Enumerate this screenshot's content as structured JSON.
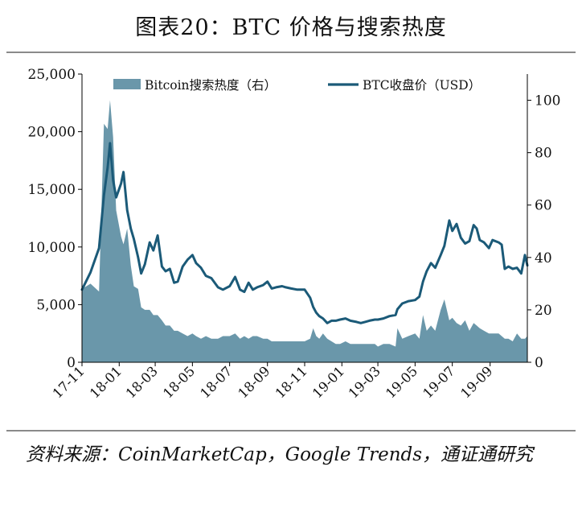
{
  "title": "图表20：BTC 价格与搜索热度",
  "source": "资料来源：CoinMarketCap，Google Trends，通证通研究",
  "colors": {
    "price": "#1b5a78",
    "search": "#6a97aa",
    "axis": "#000000"
  },
  "chart_data": {
    "type": "line",
    "legend_position": "top",
    "x_ticks": [
      "17-11",
      "18-01",
      "18-03",
      "18-05",
      "18-07",
      "18-09",
      "18-11",
      "19-01",
      "19-03",
      "19-05",
      "19-07",
      "19-09"
    ],
    "y_left": {
      "lim": [
        0,
        25000
      ],
      "ticks": [
        0,
        5000,
        10000,
        15000,
        20000,
        25000
      ],
      "tick_labels": [
        "0",
        "5,000",
        "10,000",
        "15,000",
        "20,000",
        "25,000"
      ]
    },
    "y_right": {
      "lim": [
        0,
        110
      ],
      "ticks": [
        0,
        20,
        40,
        60,
        80,
        100
      ],
      "tick_labels": [
        "0",
        "20",
        "40",
        "60",
        "80",
        "100"
      ]
    },
    "x": [
      "2017-11-01",
      "2017-11-15",
      "2017-11-29",
      "2017-12-07",
      "2017-12-13",
      "2017-12-17",
      "2017-12-22",
      "2017-12-27",
      "2018-01-04",
      "2018-01-08",
      "2018-01-14",
      "2018-01-20",
      "2018-01-25",
      "2018-02-01",
      "2018-02-06",
      "2018-02-12",
      "2018-02-20",
      "2018-02-26",
      "2018-03-05",
      "2018-03-12",
      "2018-03-18",
      "2018-03-25",
      "2018-04-01",
      "2018-04-07",
      "2018-04-15",
      "2018-04-23",
      "2018-05-01",
      "2018-05-07",
      "2018-05-15",
      "2018-05-23",
      "2018-06-01",
      "2018-06-12",
      "2018-06-20",
      "2018-07-01",
      "2018-07-10",
      "2018-07-18",
      "2018-07-25",
      "2018-08-01",
      "2018-08-08",
      "2018-08-15",
      "2018-08-25",
      "2018-09-01",
      "2018-09-08",
      "2018-09-15",
      "2018-09-25",
      "2018-10-01",
      "2018-10-10",
      "2018-10-20",
      "2018-11-01",
      "2018-11-10",
      "2018-11-15",
      "2018-11-20",
      "2018-11-25",
      "2018-12-01",
      "2018-12-08",
      "2018-12-15",
      "2018-12-22",
      "2018-12-29",
      "2019-01-07",
      "2019-01-15",
      "2019-01-25",
      "2019-02-01",
      "2019-02-08",
      "2019-02-15",
      "2019-02-24",
      "2019-03-01",
      "2019-03-10",
      "2019-03-20",
      "2019-03-30",
      "2019-04-02",
      "2019-04-10",
      "2019-04-20",
      "2019-05-01",
      "2019-05-08",
      "2019-05-14",
      "2019-05-20",
      "2019-05-27",
      "2019-06-03",
      "2019-06-12",
      "2019-06-18",
      "2019-06-26",
      "2019-07-01",
      "2019-07-08",
      "2019-07-15",
      "2019-07-22",
      "2019-07-29",
      "2019-08-05",
      "2019-08-10",
      "2019-08-15",
      "2019-08-22",
      "2019-08-30",
      "2019-09-05",
      "2019-09-15",
      "2019-09-20",
      "2019-09-25",
      "2019-10-01",
      "2019-10-08",
      "2019-10-15",
      "2019-10-22",
      "2019-10-28",
      "2019-11-01"
    ],
    "series": [
      {
        "name": "BTC收盘价（USD）",
        "axis": "left",
        "type": "line",
        "values": [
          6300,
          7800,
          9900,
          14500,
          16900,
          19000,
          15800,
          14300,
          15500,
          16500,
          13200,
          11600,
          10700,
          9100,
          7700,
          8500,
          10400,
          9700,
          11000,
          8300,
          7900,
          8100,
          6900,
          7000,
          8300,
          8900,
          9300,
          8600,
          8200,
          7500,
          7300,
          6500,
          6300,
          6600,
          7400,
          6300,
          6100,
          6900,
          6300,
          6500,
          6700,
          7000,
          6400,
          6500,
          6600,
          6500,
          6400,
          6300,
          6300,
          5600,
          4800,
          4300,
          4000,
          3800,
          3400,
          3600,
          3600,
          3700,
          3800,
          3600,
          3500,
          3400,
          3500,
          3600,
          3700,
          3700,
          3800,
          4000,
          4100,
          4600,
          5100,
          5300,
          5400,
          5700,
          7000,
          7900,
          8600,
          8200,
          9300,
          10100,
          12300,
          11400,
          12000,
          10800,
          10300,
          10500,
          11900,
          11600,
          10600,
          10400,
          9900,
          10600,
          10400,
          10200,
          8100,
          8300,
          8100,
          8200,
          7700,
          9300,
          8400
        ]
      },
      {
        "name": "Bitcoin搜索热度（右）",
        "axis": "right",
        "type": "area",
        "values": [
          28,
          30,
          27,
          91,
          89,
          100,
          86,
          58,
          48,
          45,
          51,
          37,
          29,
          28,
          21,
          20,
          20,
          18,
          18,
          16,
          14,
          14,
          12,
          12,
          11,
          10,
          11,
          10,
          9,
          10,
          9,
          9,
          10,
          10,
          11,
          9,
          10,
          9,
          10,
          10,
          9,
          9,
          8,
          8,
          8,
          8,
          8,
          8,
          8,
          9,
          13,
          10,
          9,
          11,
          9,
          8,
          7,
          7,
          8,
          7,
          7,
          7,
          7,
          7,
          7,
          6,
          7,
          7,
          6,
          13,
          9,
          10,
          11,
          9,
          18,
          12,
          14,
          12,
          20,
          24,
          16,
          17,
          15,
          14,
          16,
          12,
          15,
          14,
          13,
          12,
          11,
          11,
          11,
          10,
          9,
          9,
          8,
          11,
          9,
          9,
          10
        ]
      }
    ]
  }
}
